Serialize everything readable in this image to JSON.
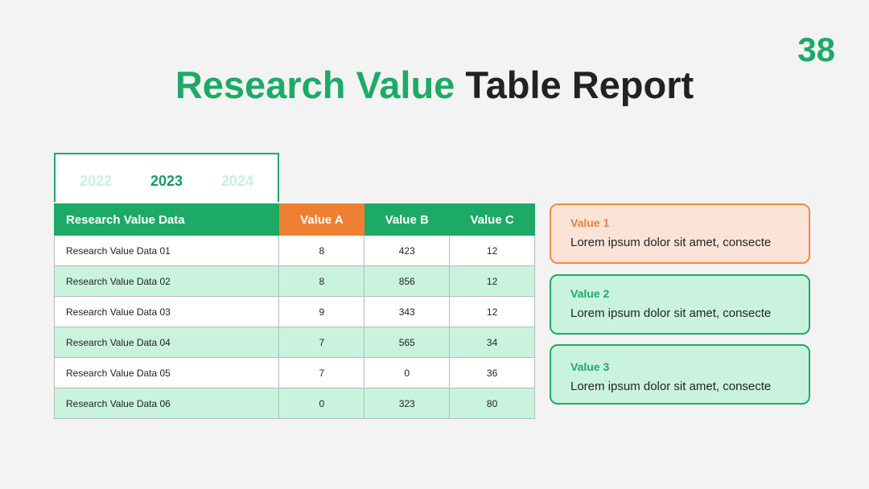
{
  "page_number": "38",
  "title": {
    "accent": "Research Value",
    "rest": "Table Report"
  },
  "year_tabs": [
    {
      "label": "2022",
      "active": false
    },
    {
      "label": "2023",
      "active": true
    },
    {
      "label": "2024",
      "active": false
    }
  ],
  "table": {
    "headers": [
      "Research Value Data",
      "Value A",
      "Value B",
      "Value C"
    ],
    "rows": [
      [
        "Research Value Data 01",
        "8",
        "423",
        "12"
      ],
      [
        "Research Value Data 02",
        "8",
        "856",
        "12"
      ],
      [
        "Research Value Data 03",
        "9",
        "343",
        "12"
      ],
      [
        "Research Value Data 04",
        "7",
        "565",
        "34"
      ],
      [
        "Research Value Data 05",
        "7",
        "0",
        "36"
      ],
      [
        "Research Value Data 06",
        "0",
        "323",
        "80"
      ]
    ]
  },
  "cards": [
    {
      "title": "Value 1",
      "text": "Lorem ipsum dolor sit amet, consecte"
    },
    {
      "title": "Value 2",
      "text": "Lorem ipsum dolor sit amet, consecte"
    },
    {
      "title": "Value 3",
      "text": "Lorem ipsum dolor sit amet, consecte"
    }
  ],
  "colors": {
    "green": "#1daa66",
    "orange": "#ef7f33",
    "light_green": "#c9f3df",
    "light_orange": "#fbe4d7"
  }
}
